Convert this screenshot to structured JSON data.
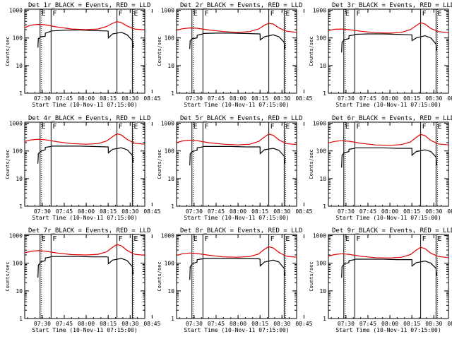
{
  "shared": {
    "xlabel": "Start Time (10-Nov-11 07:15:00)",
    "ylabel": "Counts/sec",
    "x_tick_labels": [
      "07:30",
      "07:45",
      "08:00",
      "08:15",
      "08:30",
      "08:45"
    ],
    "y_tick_labels": [
      "1",
      "10",
      "100",
      "1000"
    ],
    "colors": {
      "events": "#000000",
      "lld": "#e00000",
      "background": "#ffffff"
    }
  },
  "chart_data": [
    {
      "type": "line",
      "title": "Det 1r_BLACK = Events, RED = LLD",
      "xlabel": "Start Time (10-Nov-11 07:15:00)",
      "ylabel": "Counts/sec",
      "x_unit": "minutes after 07:15",
      "xlim": [
        18,
        100
      ],
      "ylim": [
        1,
        1100
      ],
      "yscale": "log",
      "grid": false,
      "vlines": [
        {
          "x": 28.5,
          "style": "solid",
          "label": "E"
        },
        {
          "x": 36,
          "style": "solid",
          "label": "F"
        },
        {
          "x": 81,
          "style": "solid",
          "label": "F"
        },
        {
          "x": 91.5,
          "style": "solid",
          "label": "E"
        }
      ],
      "series": [
        {
          "name": "Events",
          "color": "#000000",
          "x": [
            27,
            27.3,
            28.5,
            28.6,
            32,
            32.1,
            36,
            36.1,
            45,
            55,
            65,
            74,
            75,
            75.1,
            78,
            84,
            88,
            91.5,
            92
          ],
          "y": [
            45,
            95,
            100,
            110,
            115,
            150,
            175,
            180,
            190,
            195,
            185,
            180,
            175,
            100,
            140,
            160,
            130,
            80,
            45
          ]
        },
        {
          "name": "LLD",
          "color": "#e00000",
          "x": [
            18,
            22,
            27,
            32,
            40,
            50,
            60,
            68,
            74,
            78,
            81,
            84,
            88,
            93,
            100
          ],
          "y": [
            235,
            290,
            310,
            300,
            250,
            210,
            200,
            210,
            260,
            340,
            390,
            360,
            270,
            210,
            195
          ]
        }
      ]
    },
    {
      "type": "line",
      "title": "Det 2r_BLACK = Events, RED = LLD",
      "xlabel": "Start Time (10-Nov-11 07:15:00)",
      "ylabel": "Counts/sec",
      "x_unit": "minutes after 07:15",
      "xlim": [
        18,
        100
      ],
      "ylim": [
        1,
        1100
      ],
      "yscale": "log",
      "grid": false,
      "vlines": [
        {
          "x": 28.5,
          "style": "solid",
          "label": "E"
        },
        {
          "x": 36,
          "style": "solid",
          "label": "F"
        },
        {
          "x": 81,
          "style": "solid",
          "label": "F"
        },
        {
          "x": 91.5,
          "style": "solid",
          "label": "E"
        }
      ],
      "series": [
        {
          "name": "Events",
          "color": "#000000",
          "x": [
            27,
            27.3,
            28.5,
            28.6,
            32,
            32.1,
            36,
            36.1,
            45,
            55,
            65,
            74,
            75,
            75.1,
            78,
            84,
            88,
            91.5,
            92
          ],
          "y": [
            40,
            80,
            90,
            95,
            100,
            125,
            140,
            145,
            150,
            150,
            145,
            140,
            140,
            85,
            110,
            130,
            110,
            70,
            40
          ]
        },
        {
          "name": "LLD",
          "color": "#e00000",
          "x": [
            18,
            22,
            27,
            32,
            40,
            50,
            60,
            68,
            74,
            78,
            81,
            84,
            88,
            93,
            100
          ],
          "y": [
            190,
            215,
            230,
            225,
            195,
            170,
            160,
            170,
            210,
            290,
            340,
            320,
            230,
            175,
            160
          ]
        }
      ]
    },
    {
      "type": "line",
      "title": "Det 3r_BLACK = Events, RED = LLD",
      "xlabel": "Start Time (10-Nov-11 07:15:00)",
      "ylabel": "Counts/sec",
      "x_unit": "minutes after 07:15",
      "xlim": [
        18,
        100
      ],
      "ylim": [
        1,
        1100
      ],
      "yscale": "log",
      "grid": false,
      "vlines": [
        {
          "x": 28.5,
          "style": "solid",
          "label": "E"
        },
        {
          "x": 36,
          "style": "solid",
          "label": "F"
        },
        {
          "x": 81,
          "style": "solid",
          "label": "F"
        },
        {
          "x": 91.5,
          "style": "solid",
          "label": "E"
        }
      ],
      "series": [
        {
          "name": "Events",
          "color": "#000000",
          "x": [
            27,
            27.3,
            28.5,
            28.6,
            32,
            32.1,
            36,
            36.1,
            45,
            55,
            65,
            74,
            75,
            75.1,
            78,
            84,
            88,
            91.5,
            92
          ],
          "y": [
            30,
            70,
            80,
            85,
            95,
            120,
            130,
            135,
            140,
            140,
            135,
            130,
            130,
            80,
            100,
            120,
            100,
            60,
            35
          ]
        },
        {
          "name": "LLD",
          "color": "#e00000",
          "x": [
            18,
            22,
            27,
            32,
            40,
            50,
            60,
            68,
            74,
            78,
            81,
            84,
            88,
            93,
            100
          ],
          "y": [
            185,
            205,
            210,
            200,
            175,
            155,
            150,
            160,
            200,
            280,
            360,
            320,
            220,
            170,
            155
          ]
        }
      ]
    },
    {
      "type": "line",
      "title": "Det 4r_BLACK = Events, RED = LLD",
      "xlabel": "Start Time (10-Nov-11 07:15:00)",
      "ylabel": "Counts/sec",
      "x_unit": "minutes after 07:15",
      "xlim": [
        18,
        100
      ],
      "ylim": [
        1,
        1100
      ],
      "yscale": "log",
      "grid": false,
      "vlines": [
        {
          "x": 28.5,
          "style": "solid",
          "label": "E"
        },
        {
          "x": 36,
          "style": "solid",
          "label": "F"
        },
        {
          "x": 81,
          "style": "solid",
          "label": "F"
        },
        {
          "x": 91.5,
          "style": "solid",
          "label": "E"
        }
      ],
      "series": [
        {
          "name": "Events",
          "color": "#000000",
          "x": [
            27,
            27.3,
            28.5,
            28.6,
            32,
            32.1,
            36,
            36.1,
            45,
            55,
            65,
            74,
            75,
            75.1,
            78,
            84,
            88,
            91.5,
            92
          ],
          "y": [
            35,
            80,
            90,
            95,
            110,
            135,
            145,
            150,
            150,
            150,
            145,
            140,
            140,
            85,
            115,
            130,
            110,
            70,
            38
          ]
        },
        {
          "name": "LLD",
          "color": "#e00000",
          "x": [
            18,
            22,
            27,
            32,
            40,
            50,
            60,
            68,
            74,
            78,
            81,
            84,
            88,
            93,
            100
          ],
          "y": [
            220,
            250,
            265,
            255,
            215,
            185,
            175,
            185,
            230,
            330,
            420,
            380,
            260,
            190,
            175
          ]
        }
      ]
    },
    {
      "type": "line",
      "title": "Det 5r_BLACK = Events, RED = LLD",
      "xlabel": "Start Time (10-Nov-11 07:15:00)",
      "ylabel": "Counts/sec",
      "x_unit": "minutes after 07:15",
      "xlim": [
        18,
        100
      ],
      "ylim": [
        1,
        1100
      ],
      "yscale": "log",
      "grid": false,
      "vlines": [
        {
          "x": 28.5,
          "style": "solid",
          "label": "E"
        },
        {
          "x": 36,
          "style": "solid",
          "label": "F"
        },
        {
          "x": 81,
          "style": "solid",
          "label": "F"
        },
        {
          "x": 91.5,
          "style": "solid",
          "label": "E"
        }
      ],
      "series": [
        {
          "name": "Events",
          "color": "#000000",
          "x": [
            27,
            27.3,
            28.5,
            28.6,
            32,
            32.1,
            36,
            36.1,
            45,
            55,
            65,
            74,
            75,
            75.1,
            78,
            84,
            88,
            91.5,
            92
          ],
          "y": [
            30,
            80,
            90,
            95,
            105,
            130,
            140,
            145,
            145,
            145,
            140,
            140,
            140,
            80,
            110,
            125,
            105,
            65,
            35
          ]
        },
        {
          "name": "LLD",
          "color": "#e00000",
          "x": [
            18,
            22,
            27,
            32,
            40,
            50,
            60,
            68,
            74,
            78,
            81,
            84,
            88,
            93,
            100
          ],
          "y": [
            200,
            230,
            245,
            235,
            200,
            175,
            165,
            175,
            220,
            320,
            410,
            370,
            250,
            185,
            170
          ]
        }
      ]
    },
    {
      "type": "line",
      "title": "Det 6r_BLACK = Events, RED = LLD",
      "xlabel": "Start Time (10-Nov-11 07:15:00)",
      "ylabel": "Counts/sec",
      "x_unit": "minutes after 07:15",
      "xlim": [
        18,
        100
      ],
      "ylim": [
        1,
        1100
      ],
      "yscale": "log",
      "grid": false,
      "vlines": [
        {
          "x": 28.5,
          "style": "solid",
          "label": "E"
        },
        {
          "x": 36,
          "style": "solid",
          "label": "F"
        },
        {
          "x": 81,
          "style": "solid",
          "label": "F"
        },
        {
          "x": 91.5,
          "style": "solid",
          "label": "E"
        }
      ],
      "series": [
        {
          "name": "Events",
          "color": "#000000",
          "x": [
            27,
            27.3,
            28.5,
            28.6,
            32,
            32.1,
            36,
            36.1,
            45,
            55,
            65,
            74,
            75,
            75.1,
            78,
            84,
            88,
            91.5,
            92
          ],
          "y": [
            25,
            70,
            80,
            85,
            95,
            115,
            125,
            130,
            130,
            130,
            125,
            125,
            125,
            70,
            95,
            110,
            95,
            60,
            30
          ]
        },
        {
          "name": "LLD",
          "color": "#e00000",
          "x": [
            18,
            22,
            27,
            32,
            40,
            50,
            60,
            68,
            74,
            78,
            81,
            84,
            88,
            93,
            100
          ],
          "y": [
            195,
            220,
            235,
            225,
            190,
            165,
            160,
            170,
            210,
            310,
            400,
            360,
            240,
            180,
            165
          ]
        }
      ]
    },
    {
      "type": "line",
      "title": "Det 7r_BLACK = Events, RED = LLD",
      "xlabel": "Start Time (10-Nov-11 07:15:00)",
      "ylabel": "Counts/sec",
      "x_unit": "minutes after 07:15",
      "xlim": [
        18,
        100
      ],
      "ylim": [
        1,
        1100
      ],
      "yscale": "log",
      "grid": false,
      "vlines": [
        {
          "x": 28.5,
          "style": "solid",
          "label": "E"
        },
        {
          "x": 36,
          "style": "solid",
          "label": "F"
        },
        {
          "x": 81,
          "style": "solid",
          "label": "F"
        },
        {
          "x": 91.5,
          "style": "solid",
          "label": "E"
        }
      ],
      "series": [
        {
          "name": "Events",
          "color": "#000000",
          "x": [
            27,
            27.3,
            28.5,
            28.6,
            32,
            32.1,
            36,
            36.1,
            45,
            55,
            65,
            74,
            75,
            75.1,
            78,
            84,
            88,
            91.5,
            92
          ],
          "y": [
            30,
            85,
            100,
            110,
            125,
            155,
            170,
            175,
            175,
            175,
            170,
            170,
            165,
            95,
            130,
            150,
            125,
            75,
            40
          ]
        },
        {
          "name": "LLD",
          "color": "#e00000",
          "x": [
            18,
            22,
            27,
            32,
            40,
            50,
            60,
            68,
            74,
            78,
            81,
            84,
            88,
            93,
            100
          ],
          "y": [
            240,
            270,
            285,
            275,
            235,
            205,
            200,
            210,
            260,
            380,
            480,
            430,
            290,
            210,
            195
          ]
        }
      ]
    },
    {
      "type": "line",
      "title": "Det 8r_BLACK = Events, RED = LLD",
      "xlabel": "Start Time (10-Nov-11 07:15:00)",
      "ylabel": "Counts/sec",
      "x_unit": "minutes after 07:15",
      "xlim": [
        18,
        100
      ],
      "ylim": [
        1,
        1100
      ],
      "yscale": "log",
      "grid": false,
      "vlines": [
        {
          "x": 28.5,
          "style": "solid",
          "label": "E"
        },
        {
          "x": 36,
          "style": "solid",
          "label": "F"
        },
        {
          "x": 81,
          "style": "solid",
          "label": "F"
        },
        {
          "x": 91.5,
          "style": "solid",
          "label": "E"
        }
      ],
      "series": [
        {
          "name": "Events",
          "color": "#000000",
          "x": [
            27,
            27.3,
            28.5,
            28.6,
            32,
            32.1,
            36,
            36.1,
            45,
            55,
            65,
            74,
            75,
            75.1,
            78,
            84,
            88,
            91.5,
            92
          ],
          "y": [
            25,
            75,
            90,
            95,
            110,
            135,
            145,
            150,
            150,
            150,
            145,
            145,
            140,
            80,
            110,
            130,
            110,
            65,
            35
          ]
        },
        {
          "name": "LLD",
          "color": "#e00000",
          "x": [
            18,
            22,
            27,
            32,
            40,
            50,
            60,
            68,
            74,
            78,
            81,
            84,
            88,
            93,
            100
          ],
          "y": [
            190,
            220,
            235,
            225,
            195,
            170,
            165,
            175,
            215,
            320,
            400,
            360,
            245,
            180,
            165
          ]
        }
      ]
    },
    {
      "type": "line",
      "title": "Det 9r_BLACK = Events, RED = LLD",
      "xlabel": "Start Time (10-Nov-11 07:15:00)",
      "ylabel": "Counts/sec",
      "x_unit": "minutes after 07:15",
      "xlim": [
        18,
        100
      ],
      "ylim": [
        1,
        1100
      ],
      "yscale": "log",
      "grid": false,
      "vlines": [
        {
          "x": 28.5,
          "style": "solid",
          "label": "E"
        },
        {
          "x": 36,
          "style": "solid",
          "label": "F"
        },
        {
          "x": 81,
          "style": "solid",
          "label": "F"
        },
        {
          "x": 91.5,
          "style": "solid",
          "label": "E"
        }
      ],
      "series": [
        {
          "name": "Events",
          "color": "#000000",
          "x": [
            27,
            27.3,
            28.5,
            28.6,
            32,
            32.1,
            36,
            36.1,
            45,
            55,
            65,
            74,
            75,
            75.1,
            78,
            84,
            88,
            91.5,
            92
          ],
          "y": [
            30,
            75,
            90,
            95,
            105,
            125,
            135,
            140,
            140,
            140,
            135,
            135,
            135,
            80,
            105,
            120,
            100,
            65,
            35
          ]
        },
        {
          "name": "LLD",
          "color": "#e00000",
          "x": [
            18,
            22,
            27,
            32,
            40,
            50,
            60,
            68,
            74,
            78,
            81,
            84,
            88,
            93,
            100
          ],
          "y": [
            180,
            205,
            220,
            210,
            180,
            160,
            155,
            165,
            205,
            300,
            380,
            340,
            230,
            175,
            160
          ]
        }
      ]
    }
  ]
}
